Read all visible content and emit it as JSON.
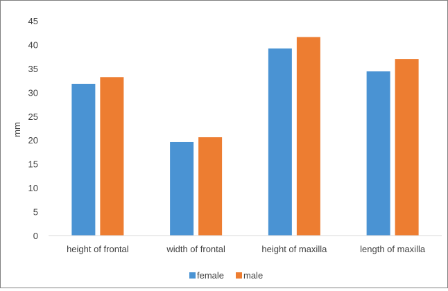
{
  "chart_data": {
    "type": "bar",
    "categories": [
      "height of frontal",
      "width of frontal",
      "height of maxilla",
      "length of maxilla"
    ],
    "series": [
      {
        "name": "female",
        "color": "#4a93d3",
        "values": [
          31.8,
          19.6,
          39.2,
          34.4
        ]
      },
      {
        "name": "male",
        "color": "#ed7d31",
        "values": [
          33.2,
          20.6,
          41.6,
          37.0
        ]
      }
    ],
    "ylabel": "mm",
    "ylim": [
      0,
      45
    ],
    "yticks": [
      0,
      5,
      10,
      15,
      20,
      25,
      30,
      35,
      40,
      45
    ],
    "grid": false,
    "legend": "bottom-center"
  }
}
